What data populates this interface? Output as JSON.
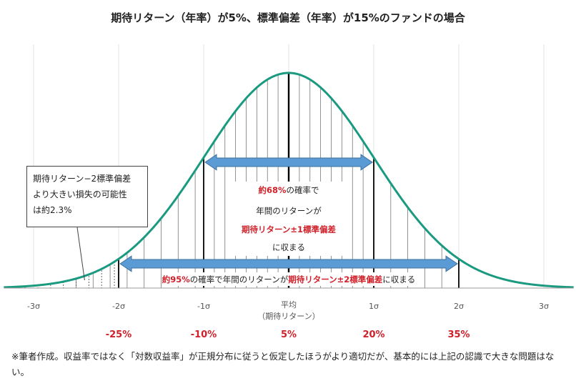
{
  "title": "期待リターン（年率）が5%、標準偏差（年率）が15%のファンドの場合",
  "chart_data": {
    "type": "area",
    "distribution": "normal",
    "mean": 5,
    "sd": 15,
    "sigma_ticks": [
      "-3σ",
      "-2σ",
      "-1σ",
      "平均",
      "1σ",
      "2σ",
      "3σ"
    ],
    "mean_sub_label": "（期待リターン）",
    "return_labels": [
      "-25%",
      "-10%",
      "5%",
      "20%",
      "35%"
    ],
    "colors": {
      "curve": "#1a9a80",
      "arrow": "#5b9bd5",
      "emphasis": "#d0202a",
      "gridline": "#e3e3e3"
    }
  },
  "annotations": {
    "inner_lines": [
      {
        "text": "約68%",
        "emph": true,
        "text2": "の確率で"
      },
      {
        "text": "年間のリターンが",
        "emph": false,
        "text2": ""
      },
      {
        "text": "期待リターン±1標準偏差",
        "emph": true,
        "text2": ""
      },
      {
        "text": "に収まる",
        "emph": false,
        "text2": ""
      }
    ],
    "outer_line": {
      "p1": "約95%",
      "p2": "の確率で年間のリターンが",
      "p3": "期待リターン±2標準偏差",
      "p4": "に収まる"
    },
    "callout_lines": [
      "期待リターン−2標準偏差",
      "より大きい損失の可能性",
      "は約2.3%"
    ]
  },
  "footnote": "※筆者作成。収益率ではなく「対数収益率」が正規分布に従うと仮定したほうがより適切だが、基本的には上記の認識で大きな問題はない。"
}
